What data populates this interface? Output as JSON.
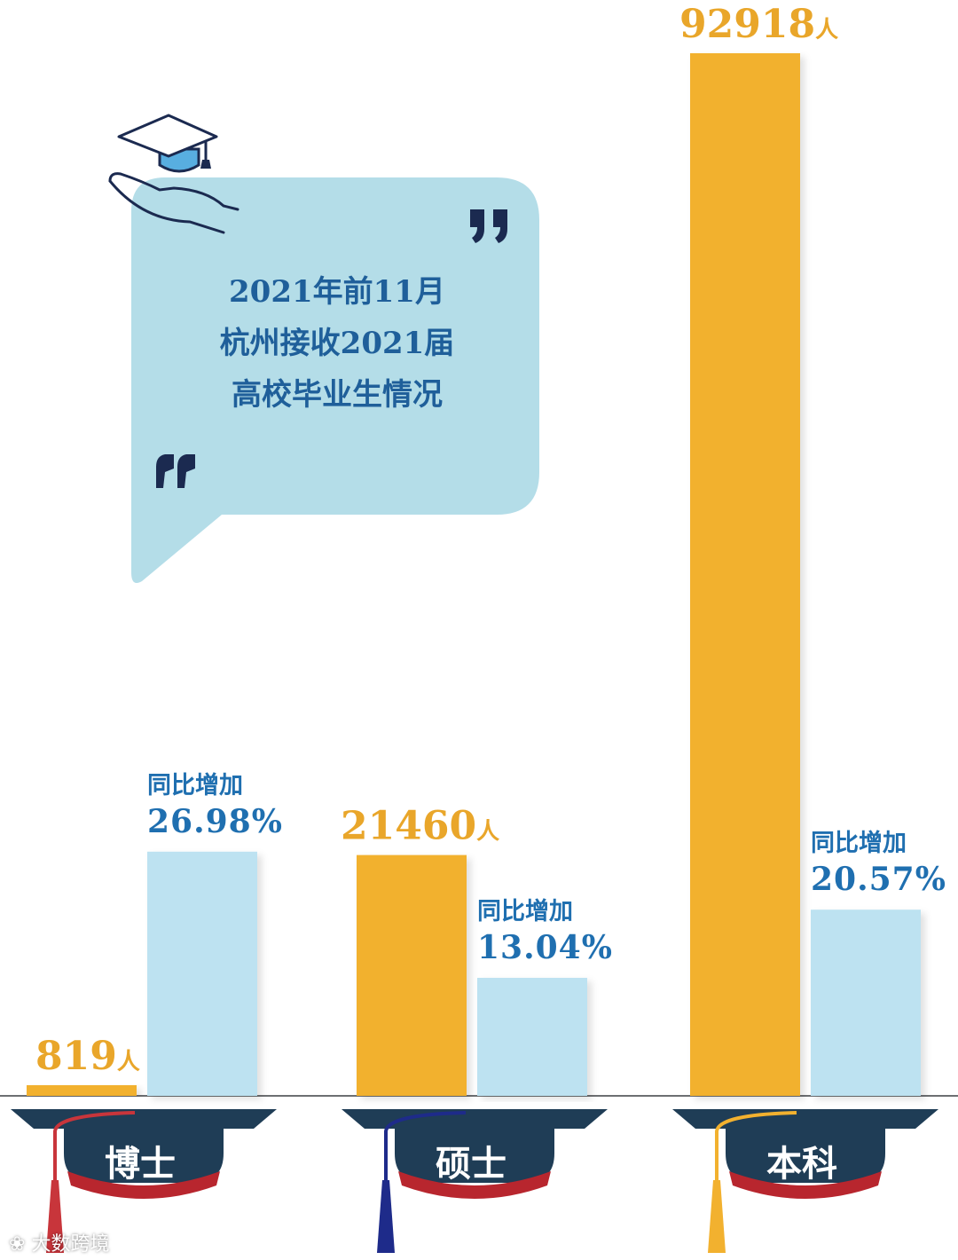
{
  "headline": {
    "line1": "2021年前11月",
    "line2": "杭州接收2021届",
    "line3": "高校毕业生情况"
  },
  "growth_label": "同比增加",
  "count_unit": "人",
  "watermark": "大数跨境",
  "colors": {
    "count_bar": "#f2b12f",
    "growth_bar": "#bde2f1",
    "count_text": "#e9a62a",
    "growth_text": "#1f6fb0",
    "bubble": "#b4dde8",
    "cap": "#1f3d56",
    "cap_band": "#b8262e"
  },
  "chart_data": {
    "type": "bar",
    "categories": [
      "博士",
      "硕士",
      "本科"
    ],
    "series": [
      {
        "values": [
          819,
          21460,
          92918
        ]
      },
      {
        "values": [
          26.98,
          13.04,
          20.57
        ]
      }
    ],
    "count_labels": [
      "819",
      "21460",
      "92918"
    ],
    "growth_labels": [
      "26.98%",
      "13.04%",
      "20.57%"
    ],
    "tassel_colors": [
      "#c8353b",
      "#1e2b8a",
      "#f2b12f"
    ],
    "xlabel": "",
    "ylabel": ""
  }
}
